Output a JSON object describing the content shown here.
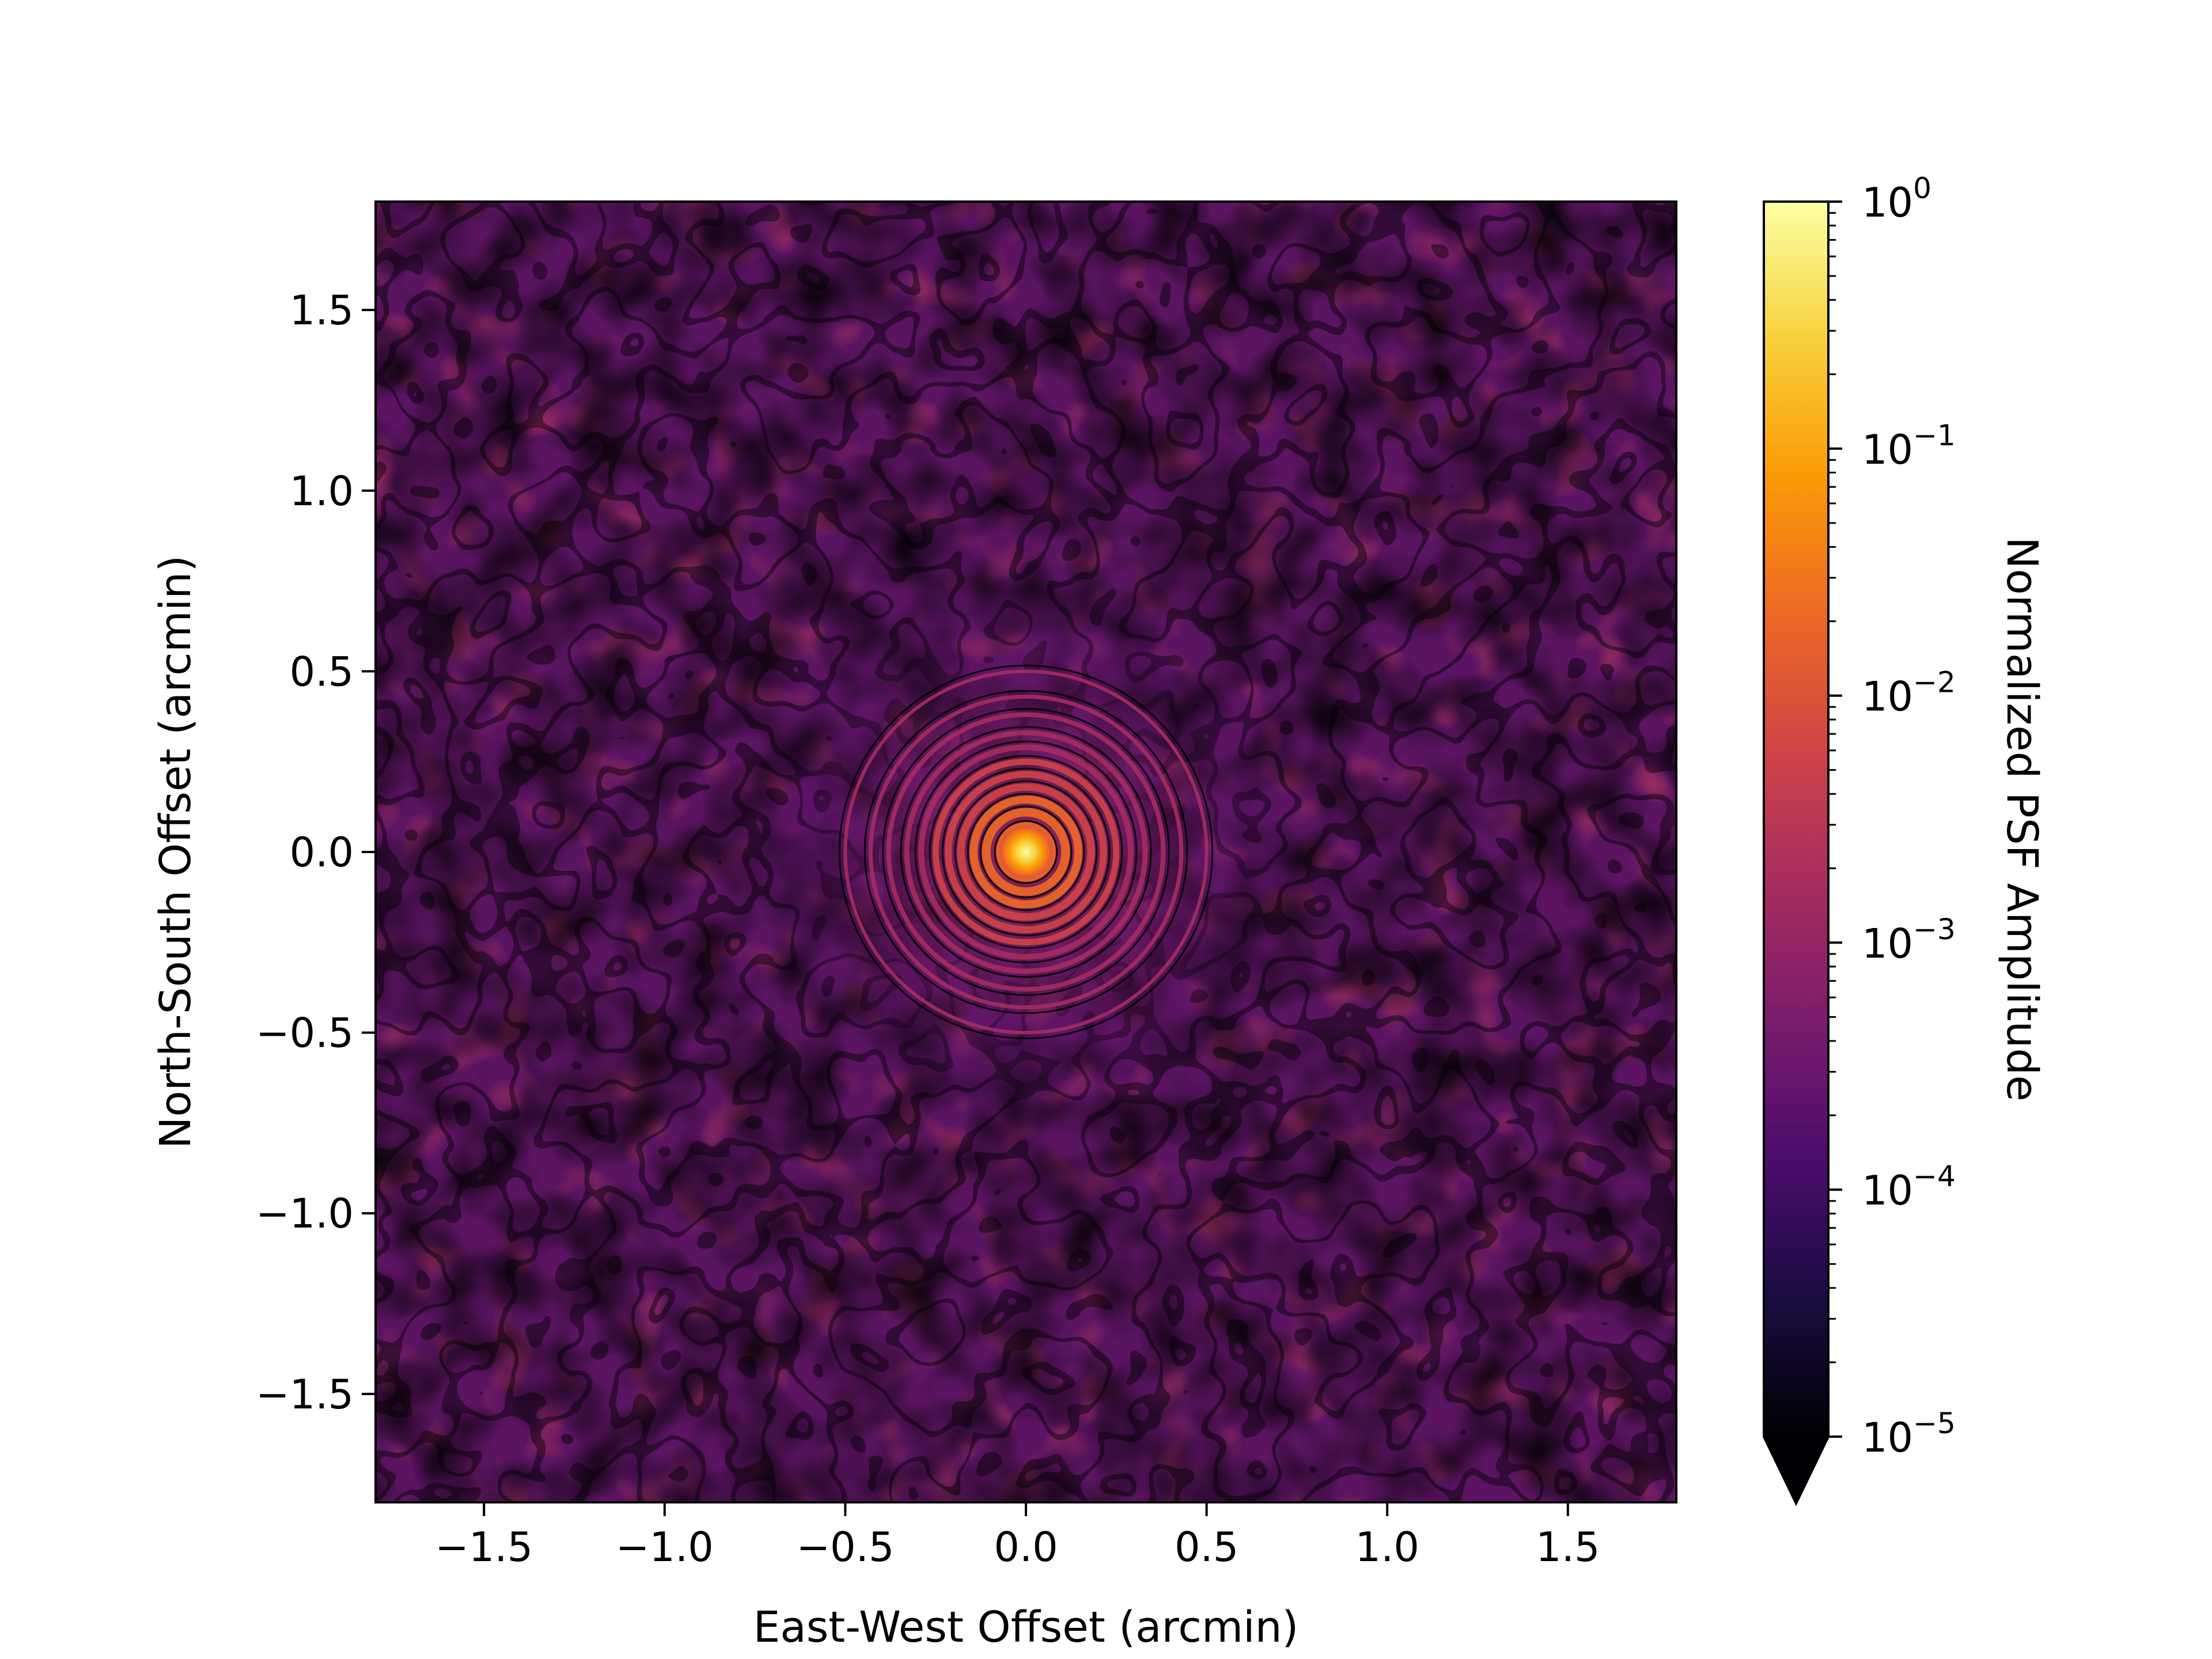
{
  "chart_data": {
    "type": "heatmap",
    "title": "",
    "xlabel": "East-West Offset (arcmin)",
    "ylabel": "North-South Offset (arcmin)",
    "xlim": [
      -1.8,
      1.8
    ],
    "ylim": [
      -1.8,
      1.8
    ],
    "xticks": [
      -1.5,
      -1.0,
      -0.5,
      0.0,
      0.5,
      1.0,
      1.5
    ],
    "yticks": [
      -1.5,
      -1.0,
      -0.5,
      0.0,
      0.5,
      1.0,
      1.5
    ],
    "xtick_labels": [
      "−1.5",
      "−1.0",
      "−0.5",
      "0.0",
      "0.5",
      "1.0",
      "1.5"
    ],
    "ytick_labels": [
      "−1.5",
      "−1.0",
      "−0.5",
      "0.0",
      "0.5",
      "1.0",
      "1.5"
    ],
    "grid": false,
    "colormap": "inferno",
    "colorbar": {
      "label": "Normalized PSF Amplitude",
      "scale": "log",
      "range": [
        1e-05,
        1
      ],
      "extend": "min",
      "ticks": [
        {
          "value": 1,
          "base": "10",
          "exp": "0"
        },
        {
          "value": 0.1,
          "base": "10",
          "exp": "−1"
        },
        {
          "value": 0.01,
          "base": "10",
          "exp": "−2"
        },
        {
          "value": 0.001,
          "base": "10",
          "exp": "−3"
        },
        {
          "value": 0.0001,
          "base": "10",
          "exp": "−4"
        },
        {
          "value": 1e-05,
          "base": "10",
          "exp": "−5"
        }
      ]
    },
    "description_values": {
      "peak_amplitude": 1,
      "peak_position": [
        0.0,
        0.0
      ],
      "background_amplitude_typical": 0.0005
    }
  },
  "colors": {
    "inferno": [
      "#000004",
      "#1b0c41",
      "#4a0c6b",
      "#781c6d",
      "#a52c60",
      "#cf4446",
      "#ed6925",
      "#fb9b06",
      "#f7d13d",
      "#fcffa4"
    ],
    "axes": "#000000",
    "contour": "#000000"
  }
}
